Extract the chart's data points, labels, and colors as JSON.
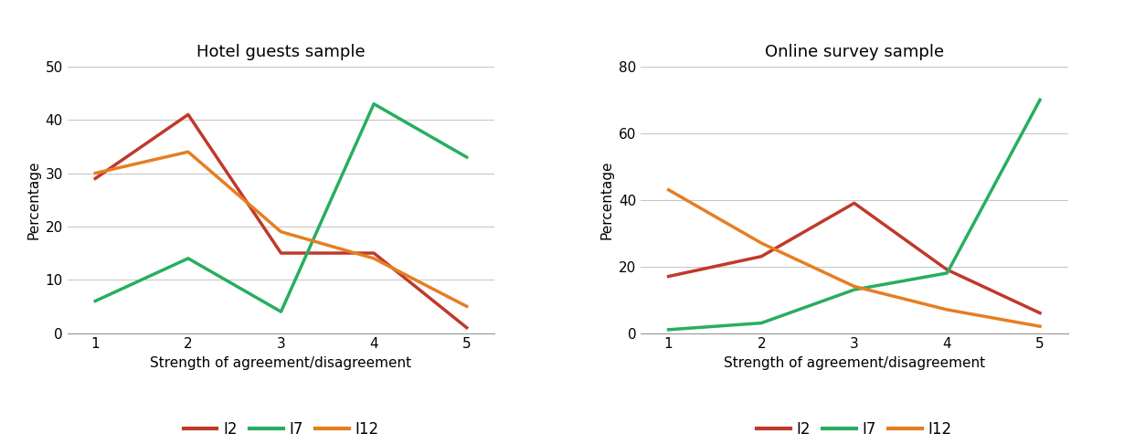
{
  "left_title": "Hotel guests sample",
  "right_title": "Online survey sample",
  "xlabel": "Strength of agreement/disagreement",
  "ylabel": "Percentage",
  "x": [
    1,
    2,
    3,
    4,
    5
  ],
  "left": {
    "I2": [
      29,
      41,
      15,
      15,
      1
    ],
    "I7": [
      6,
      14,
      4,
      43,
      33
    ],
    "I12": [
      30,
      34,
      19,
      14,
      5
    ]
  },
  "right": {
    "I2": [
      17,
      23,
      39,
      19,
      6
    ],
    "I7": [
      1,
      3,
      13,
      18,
      70
    ],
    "I12": [
      43,
      27,
      14,
      7,
      2
    ]
  },
  "left_ylim": [
    0,
    50
  ],
  "left_yticks": [
    0,
    10,
    20,
    30,
    40,
    50
  ],
  "right_ylim": [
    0,
    80
  ],
  "right_yticks": [
    0,
    20,
    40,
    60,
    80
  ],
  "colors": {
    "I2": "#c0392b",
    "I7": "#27ae60",
    "I12": "#e67e22"
  },
  "linewidth": 2.5,
  "legend_labels": [
    "I2",
    "I7",
    "I12"
  ],
  "title_fontsize": 13,
  "axis_label_fontsize": 11,
  "tick_fontsize": 11,
  "legend_fontsize": 12
}
